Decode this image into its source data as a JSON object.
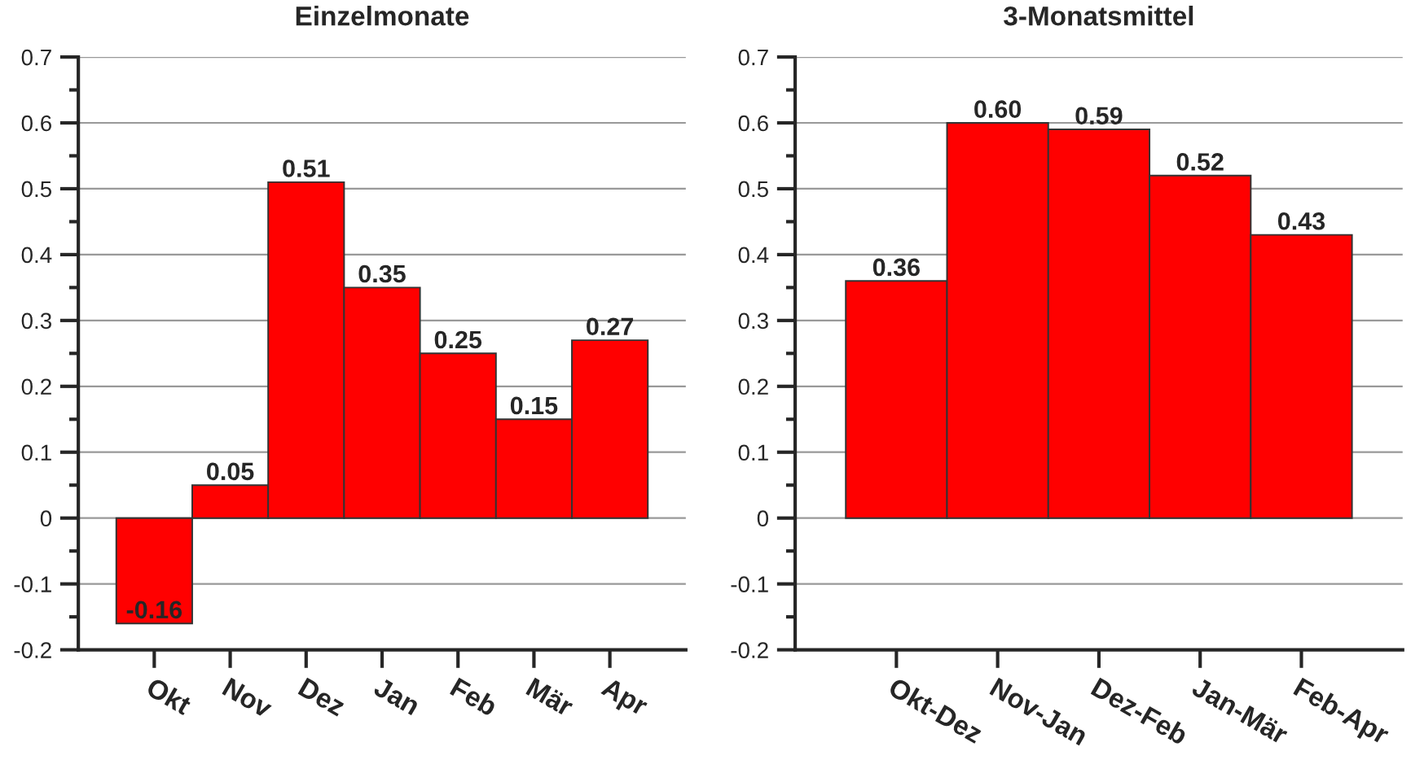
{
  "chart_data": [
    {
      "type": "bar",
      "title": "Einzelmonate",
      "categories": [
        "Okt",
        "Nov",
        "Dez",
        "Jan",
        "Feb",
        "Mär",
        "Apr"
      ],
      "values": [
        -0.16,
        0.05,
        0.51,
        0.35,
        0.25,
        0.15,
        0.27
      ],
      "value_labels": [
        "-0.16",
        "0.05",
        "0.51",
        "0.35",
        "0.25",
        "0.15",
        "0.27"
      ],
      "color": "#ff0000",
      "ylim": [
        -0.2,
        0.7
      ],
      "yticks": [
        -0.2,
        -0.1,
        0,
        0.1,
        0.2,
        0.3,
        0.4,
        0.5,
        0.6,
        0.7
      ],
      "grid": "y"
    },
    {
      "type": "bar",
      "title": "3-Monatsmittel",
      "categories": [
        "Okt-Dez",
        "Nov-Jan",
        "Dez-Feb",
        "Jan-Mär",
        "Feb-Apr"
      ],
      "values": [
        0.36,
        0.6,
        0.59,
        0.52,
        0.43
      ],
      "value_labels": [
        "0.36",
        "0.60",
        "0.59",
        "0.52",
        "0.43"
      ],
      "color": "#ff0000",
      "ylim": [
        -0.2,
        0.7
      ],
      "yticks": [
        -0.2,
        -0.1,
        0,
        0.1,
        0.2,
        0.3,
        0.4,
        0.5,
        0.6,
        0.7
      ],
      "grid": "y"
    }
  ]
}
